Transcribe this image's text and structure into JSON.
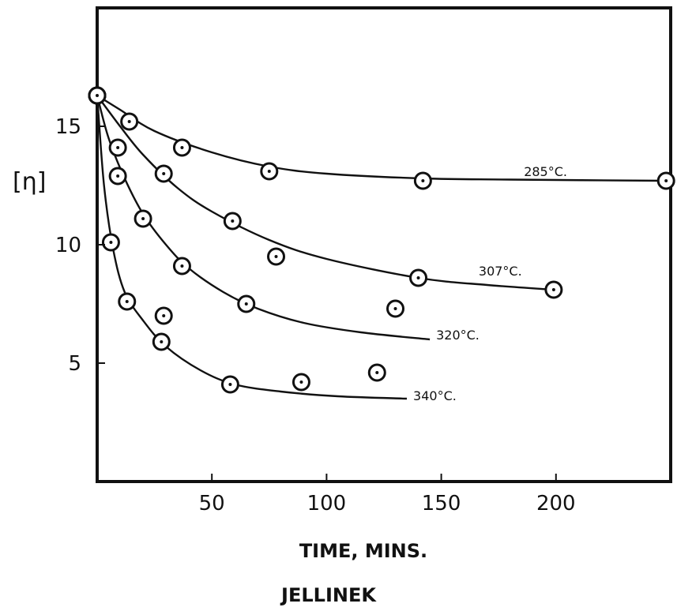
{
  "chart_data": {
    "type": "scatter",
    "xlabel": "TIME, MINS.",
    "ylabel": "[η]",
    "caption": "JELLINEK",
    "xlim": [
      0,
      250
    ],
    "ylim": [
      0,
      20
    ],
    "x_ticks": [
      50,
      100,
      150,
      200
    ],
    "y_ticks": [
      5,
      10,
      15
    ],
    "grid": false,
    "series": [
      {
        "name": "285°C.",
        "points": [
          [
            0,
            16.3
          ],
          [
            14,
            15.2
          ],
          [
            37,
            14.1
          ],
          [
            75,
            13.1
          ],
          [
            142,
            12.7
          ],
          [
            248,
            12.7
          ]
        ],
        "curve": [
          [
            0,
            16.3
          ],
          [
            10,
            15.7
          ],
          [
            25,
            14.8
          ],
          [
            50,
            13.9
          ],
          [
            75,
            13.3
          ],
          [
            100,
            13.0
          ],
          [
            142,
            12.8
          ],
          [
            180,
            12.75
          ],
          [
            248,
            12.7
          ]
        ]
      },
      {
        "name": "307°C.",
        "points": [
          [
            0,
            16.3
          ],
          [
            9,
            14.1
          ],
          [
            29,
            13.0
          ],
          [
            59,
            11.0
          ],
          [
            78,
            9.5
          ],
          [
            140,
            8.6
          ],
          [
            199,
            8.1
          ]
        ],
        "curve": [
          [
            0,
            16.3
          ],
          [
            10,
            15.0
          ],
          [
            20,
            13.8
          ],
          [
            35,
            12.4
          ],
          [
            50,
            11.4
          ],
          [
            75,
            10.2
          ],
          [
            100,
            9.4
          ],
          [
            140,
            8.6
          ],
          [
            170,
            8.3
          ],
          [
            199,
            8.1
          ]
        ]
      },
      {
        "name": "320°C.",
        "points": [
          [
            0,
            16.3
          ],
          [
            9,
            12.9
          ],
          [
            20,
            11.1
          ],
          [
            37,
            9.1
          ],
          [
            65,
            7.5
          ],
          [
            130,
            7.3
          ]
        ],
        "curve": [
          [
            0,
            16.3
          ],
          [
            5,
            14.5
          ],
          [
            12,
            12.8
          ],
          [
            20,
            11.3
          ],
          [
            30,
            10.0
          ],
          [
            40,
            9.0
          ],
          [
            55,
            8.0
          ],
          [
            70,
            7.3
          ],
          [
            90,
            6.7
          ],
          [
            115,
            6.3
          ],
          [
            145,
            6.0
          ]
        ]
      },
      {
        "name": "340°C.",
        "points": [
          [
            0,
            16.3
          ],
          [
            6,
            10.1
          ],
          [
            13,
            7.6
          ],
          [
            29,
            7.0
          ],
          [
            28,
            5.9
          ],
          [
            58,
            4.1
          ],
          [
            89,
            4.2
          ],
          [
            122,
            4.6
          ]
        ],
        "curve": [
          [
            0,
            16.3
          ],
          [
            3,
            12.5
          ],
          [
            7,
            9.8
          ],
          [
            12,
            8.0
          ],
          [
            20,
            6.8
          ],
          [
            30,
            5.7
          ],
          [
            45,
            4.7
          ],
          [
            60,
            4.1
          ],
          [
            80,
            3.8
          ],
          [
            105,
            3.6
          ],
          [
            135,
            3.5
          ]
        ]
      }
    ]
  }
}
